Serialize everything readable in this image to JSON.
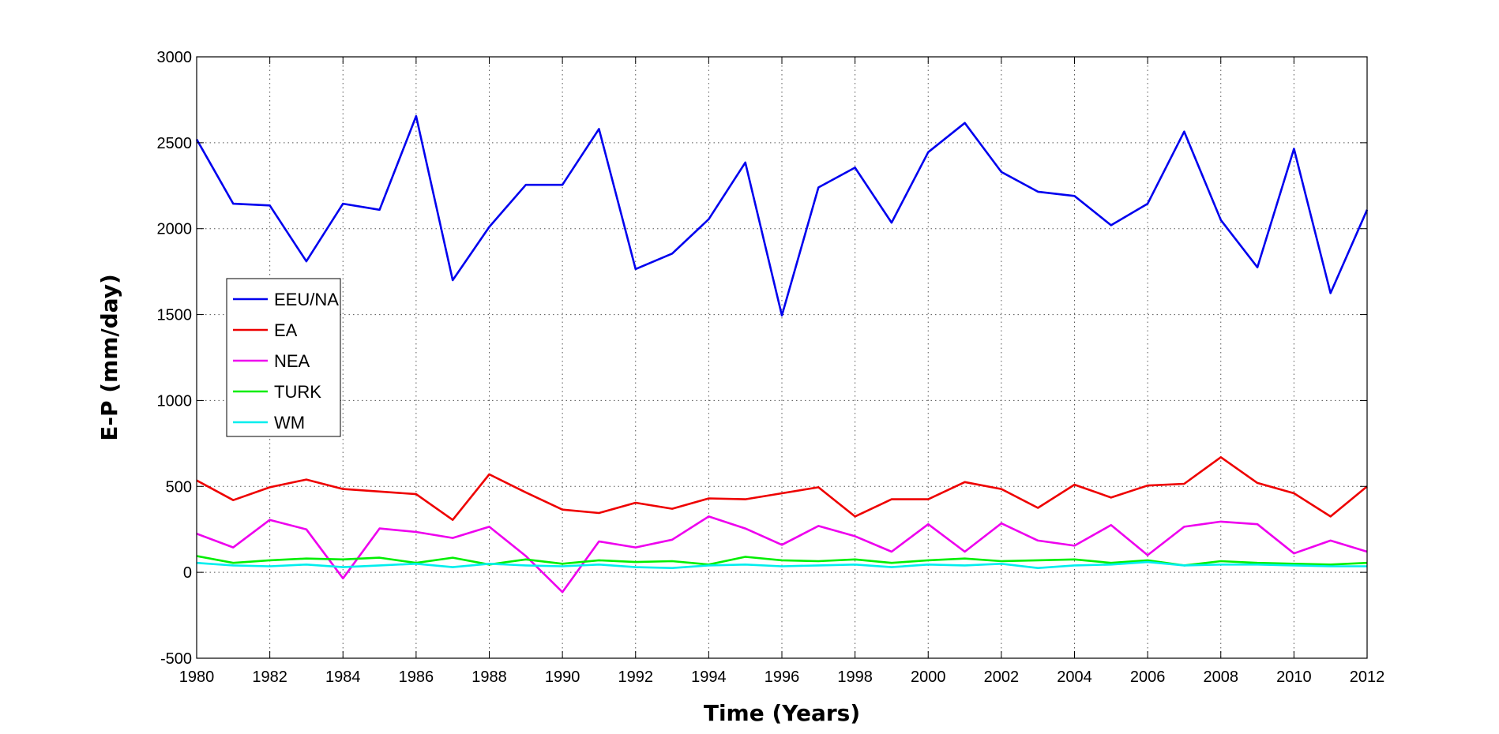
{
  "chart_data": {
    "type": "line",
    "xlabel": "Time (Years)",
    "ylabel": "E-P (mm/day)",
    "xlim": [
      1980,
      2012
    ],
    "ylim": [
      -500,
      3000
    ],
    "xticks": [
      "1980",
      "1982",
      "1984",
      "1986",
      "1988",
      "1990",
      "1992",
      "1994",
      "1996",
      "1998",
      "2000",
      "2002",
      "2004",
      "2006",
      "2008",
      "2010",
      "2012"
    ],
    "yticks": [
      "-500",
      "0",
      "500",
      "1000",
      "1500",
      "2000",
      "2500",
      "3000"
    ],
    "grid": true,
    "legend_position": "left",
    "x": [
      1980,
      1981,
      1982,
      1983,
      1984,
      1985,
      1986,
      1987,
      1988,
      1989,
      1990,
      1991,
      1992,
      1993,
      1994,
      1995,
      1996,
      1997,
      1998,
      1999,
      2000,
      2001,
      2002,
      2003,
      2004,
      2005,
      2006,
      2007,
      2008,
      2009,
      2010,
      2011,
      2012
    ],
    "series": [
      {
        "name": "EEU/NA",
        "color": "#0000ee",
        "values": [
          2520,
          2145,
          2135,
          1810,
          2145,
          2110,
          2655,
          1700,
          2010,
          2255,
          2255,
          2580,
          1765,
          1855,
          2055,
          2385,
          1495,
          2240,
          2355,
          2035,
          2445,
          2615,
          2330,
          2215,
          2190,
          2020,
          2145,
          2565,
          2050,
          1775,
          2465,
          1625,
          2110
        ]
      },
      {
        "name": "EA",
        "color": "#ee0000",
        "values": [
          535,
          420,
          495,
          540,
          485,
          470,
          455,
          305,
          570,
          465,
          365,
          345,
          405,
          370,
          430,
          425,
          460,
          495,
          325,
          425,
          425,
          525,
          485,
          375,
          510,
          435,
          505,
          515,
          670,
          520,
          460,
          325,
          500
        ]
      },
      {
        "name": "NEA",
        "color": "#ee00ee",
        "values": [
          225,
          145,
          305,
          250,
          -35,
          255,
          235,
          200,
          265,
          95,
          -115,
          180,
          145,
          190,
          325,
          255,
          160,
          270,
          210,
          120,
          280,
          120,
          285,
          185,
          155,
          275,
          100,
          265,
          295,
          280,
          110,
          185,
          120
        ]
      },
      {
        "name": "TURK",
        "color": "#00ee00",
        "values": [
          95,
          55,
          70,
          80,
          75,
          85,
          55,
          85,
          45,
          75,
          50,
          70,
          60,
          65,
          45,
          90,
          70,
          65,
          75,
          55,
          70,
          80,
          65,
          70,
          75,
          55,
          70,
          40,
          65,
          55,
          50,
          45,
          55
        ]
      },
      {
        "name": "WM",
        "color": "#00eeee",
        "values": [
          55,
          40,
          35,
          45,
          30,
          40,
          50,
          30,
          50,
          40,
          35,
          45,
          30,
          25,
          40,
          45,
          35,
          40,
          45,
          30,
          45,
          40,
          50,
          25,
          40,
          45,
          60,
          40,
          45,
          45,
          40,
          35,
          35
        ]
      }
    ]
  }
}
